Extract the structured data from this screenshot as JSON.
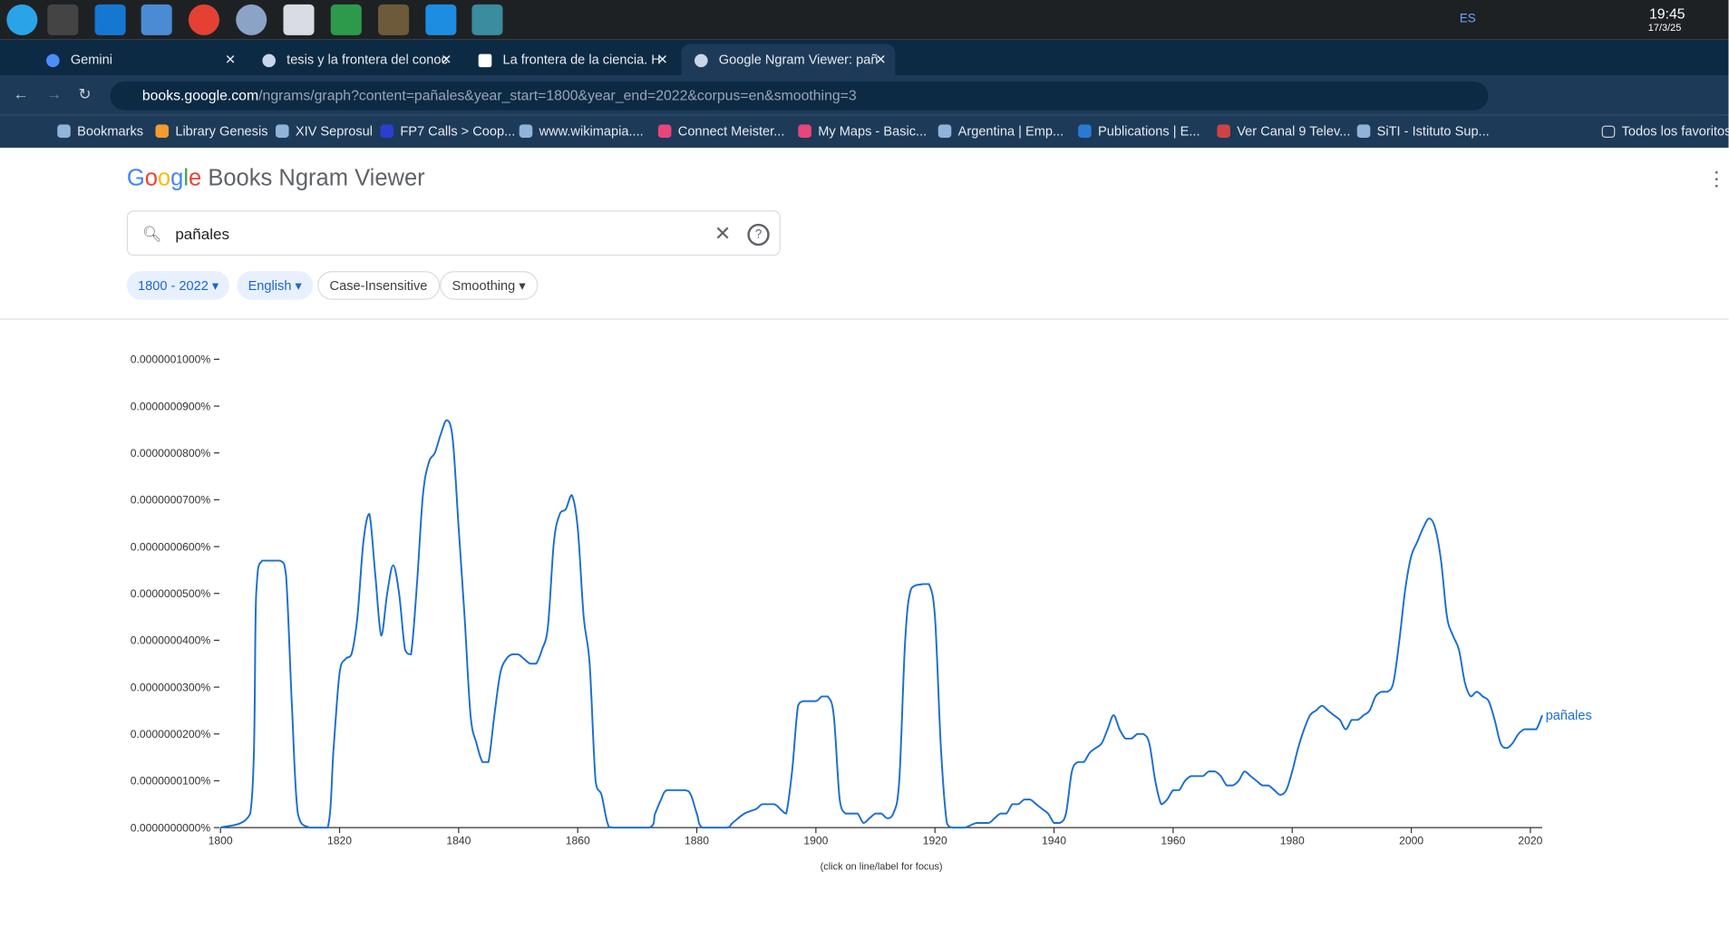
{
  "taskbar": {
    "language": "ES",
    "time": "19:45",
    "date": "17/3/25"
  },
  "tabs": [
    "Gemini",
    "tesis y la frontera del conoc",
    "La frontera de la ciencia. H",
    "Google Ngram Viewer: pañ"
  ],
  "address": {
    "host": "books.google.com",
    "path": "/ngrams/graph?content=pañales&year_start=1800&year_end=2022&corpus=en&smoothing=3"
  },
  "bookmarks": [
    "Bookmarks",
    "Library Genesis",
    "XIV Seprosul",
    "FP7 Calls > Coop...",
    "www.wikimapia....",
    "Connect Meister...",
    "My Maps - Basic...",
    "Argentina | Emp...",
    "Publications | E...",
    "Ver Canal 9 Telev...",
    "SiTI - Istituto Sup..."
  ],
  "bookmarks_folder": "Todos los favoritos",
  "header": {
    "logo": "Google",
    "title": "Books Ngram Viewer"
  },
  "search": {
    "query": "pañales"
  },
  "filters": [
    "1800 - 2022",
    "English",
    "Case-Insensitive",
    "Smoothing"
  ],
  "chart_data": {
    "type": "line",
    "note": "(click on line/label for focus)",
    "grid": false,
    "x": [
      1800,
      1805,
      1806,
      1807,
      1810,
      1811,
      1812,
      1813,
      1815,
      1818,
      1819,
      1820,
      1821,
      1822,
      1823,
      1824,
      1825,
      1826,
      1827,
      1828,
      1829,
      1830,
      1831,
      1832,
      1833,
      1834,
      1835,
      1836,
      1837,
      1838,
      1839,
      1840,
      1841,
      1842,
      1843,
      1844,
      1845,
      1846,
      1847,
      1848,
      1849,
      1850,
      1851,
      1852,
      1853,
      1854,
      1855,
      1856,
      1857,
      1858,
      1859,
      1860,
      1861,
      1862,
      1863,
      1864,
      1865,
      1866,
      1872,
      1873,
      1874,
      1875,
      1878,
      1879,
      1880,
      1881,
      1885,
      1886,
      1888,
      1890,
      1891,
      1893,
      1894,
      1895,
      1896,
      1897,
      1898,
      1900,
      1901,
      1902,
      1903,
      1904,
      1905,
      1906,
      1907,
      1908,
      1909,
      1910,
      1911,
      1912,
      1913,
      1914,
      1915,
      1916,
      1918,
      1919,
      1920,
      1921,
      1922,
      1923,
      1925,
      1927,
      1929,
      1930,
      1931,
      1932,
      1933,
      1934,
      1935,
      1936,
      1937,
      1938,
      1939,
      1940,
      1941,
      1942,
      1943,
      1944,
      1945,
      1946,
      1947,
      1948,
      1949,
      1950,
      1951,
      1952,
      1953,
      1954,
      1955,
      1956,
      1957,
      1958,
      1959,
      1960,
      1961,
      1962,
      1963,
      1964,
      1965,
      1966,
      1967,
      1968,
      1969,
      1970,
      1971,
      1972,
      1973,
      1974,
      1975,
      1976,
      1977,
      1978,
      1979,
      1980,
      1981,
      1982,
      1983,
      1984,
      1985,
      1986,
      1987,
      1988,
      1989,
      1990,
      1991,
      1992,
      1993,
      1994,
      1995,
      1996,
      1997,
      1998,
      1999,
      2000,
      2001,
      2002,
      2003,
      2004,
      2005,
      2006,
      2007,
      2008,
      2009,
      2010,
      2011,
      2012,
      2013,
      2014,
      2015,
      2016,
      2017,
      2018,
      2019,
      2020,
      2021,
      2022
    ],
    "series": [
      {
        "name": "pañales",
        "color": "#1a6fd1",
        "values": [
          0,
          3e-09,
          5e-08,
          5.7e-08,
          5.7e-08,
          5.4e-08,
          2.6e-08,
          3e-09,
          0,
          0,
          1.7e-08,
          3.3e-08,
          3.6e-08,
          3.7e-08,
          4.5e-08,
          6.1e-08,
          6.7e-08,
          5.4e-08,
          4.1e-08,
          5e-08,
          5.6e-08,
          5e-08,
          3.8e-08,
          3.7e-08,
          5.2e-08,
          7.1e-08,
          7.8e-08,
          8e-08,
          8.4e-08,
          8.7e-08,
          8.3e-08,
          6.4e-08,
          4.5e-08,
          2.4e-08,
          1.8e-08,
          1.4e-08,
          1.4e-08,
          2.4e-08,
          3.3e-08,
          3.6e-08,
          3.7e-08,
          3.7e-08,
          3.6e-08,
          3.5e-08,
          3.5e-08,
          3.8e-08,
          4.3e-08,
          6.1e-08,
          6.7e-08,
          6.8e-08,
          7.1e-08,
          6.4e-08,
          4.5e-08,
          3.5e-08,
          1e-08,
          7e-09,
          1e-09,
          0,
          0,
          3e-09,
          6e-09,
          8e-09,
          8e-09,
          7e-09,
          3e-09,
          0,
          0,
          1e-09,
          3e-09,
          4e-09,
          5e-09,
          5e-09,
          4e-09,
          3e-09,
          1.2e-08,
          2.6e-08,
          2.7e-08,
          2.7e-08,
          2.8e-08,
          2.8e-08,
          2.4e-08,
          6e-09,
          3e-09,
          3e-09,
          3e-09,
          1e-09,
          2e-09,
          3e-09,
          3e-09,
          2e-09,
          3e-09,
          1e-08,
          4e-08,
          5.1e-08,
          5.2e-08,
          5.2e-08,
          4.5e-08,
          1.7e-08,
          1e-09,
          0,
          0,
          1e-09,
          1e-09,
          2e-09,
          3e-09,
          3e-09,
          5e-09,
          5e-09,
          6e-09,
          6e-09,
          5e-09,
          4e-09,
          3e-09,
          1e-09,
          1e-09,
          3e-09,
          1.2e-08,
          1.4e-08,
          1.4e-08,
          1.6e-08,
          1.7e-08,
          1.8e-08,
          2.1e-08,
          2.4e-08,
          2.1e-08,
          1.9e-08,
          1.9e-08,
          2e-08,
          2e-08,
          1.8e-08,
          1e-08,
          5e-09,
          6e-09,
          8e-09,
          8e-09,
          1e-08,
          1.1e-08,
          1.1e-08,
          1.1e-08,
          1.2e-08,
          1.2e-08,
          1.1e-08,
          9e-09,
          9e-09,
          1e-08,
          1.2e-08,
          1.1e-08,
          1e-08,
          9e-09,
          9e-09,
          8e-09,
          7e-09,
          8e-09,
          1.2e-08,
          1.7e-08,
          2.1e-08,
          2.4e-08,
          2.5e-08,
          2.6e-08,
          2.5e-08,
          2.4e-08,
          2.3e-08,
          2.1e-08,
          2.3e-08,
          2.3e-08,
          2.4e-08,
          2.5e-08,
          2.8e-08,
          2.9e-08,
          2.9e-08,
          3.1e-08,
          4e-08,
          5.1e-08,
          5.8e-08,
          6.1e-08,
          6.4e-08,
          6.6e-08,
          6.4e-08,
          5.7e-08,
          4.5e-08,
          4.1e-08,
          3.8e-08,
          3.1e-08,
          2.8e-08,
          2.9e-08,
          2.8e-08,
          2.7e-08,
          2.3e-08,
          1.8e-08,
          1.7e-08,
          1.8e-08,
          2e-08,
          2.1e-08,
          2.1e-08,
          2.1e-08,
          2.4e-08
        ]
      }
    ],
    "xlim": [
      1800,
      2022
    ],
    "xticks": [
      1800,
      1820,
      1840,
      1860,
      1880,
      1900,
      1920,
      1940,
      1960,
      1980,
      2000,
      2020
    ],
    "ylim": [
      0,
      1e-07
    ],
    "yticks": [
      {
        "value": 0,
        "label": "0.0000000000%"
      },
      {
        "value": 1e-08,
        "label": "0.0000000100%"
      },
      {
        "value": 2e-08,
        "label": "0.0000000200%"
      },
      {
        "value": 3e-08,
        "label": "0.0000000300%"
      },
      {
        "value": 4e-08,
        "label": "0.0000000400%"
      },
      {
        "value": 5e-08,
        "label": "0.0000000500%"
      },
      {
        "value": 6e-08,
        "label": "0.0000000600%"
      },
      {
        "value": 7e-08,
        "label": "0.0000000700%"
      },
      {
        "value": 8e-08,
        "label": "0.0000000800%"
      },
      {
        "value": 9e-08,
        "label": "0.0000000900%"
      },
      {
        "value": 1e-07,
        "label": "0.0000001000%"
      }
    ]
  }
}
